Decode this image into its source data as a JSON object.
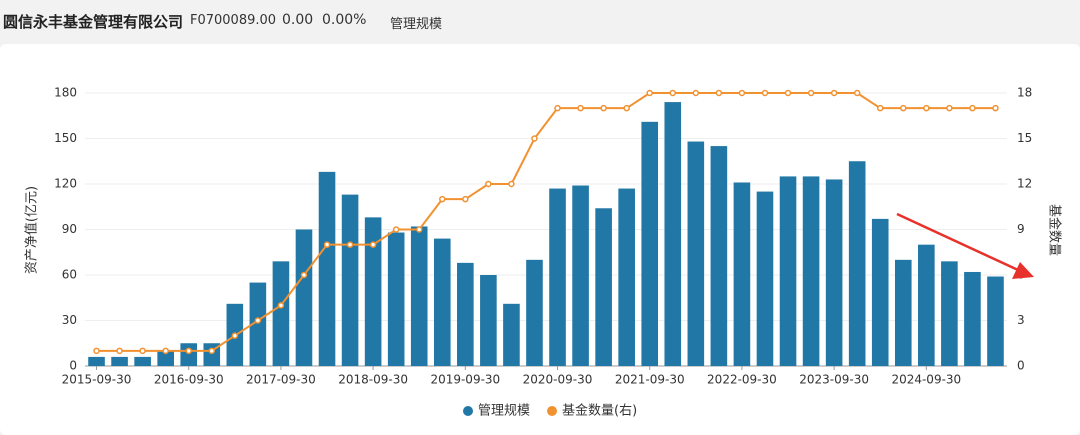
{
  "header": {
    "title": "圆信永丰基金管理有限公司",
    "code": "F0700089.00",
    "price": "0.00",
    "change": "0.00%",
    "tab": "管理规模"
  },
  "chart_data": {
    "type": "bar",
    "y_label": "资产净值(亿元)",
    "y2_label": "基金数量",
    "categories": [
      "2015-09-30",
      null,
      null,
      null,
      "2016-09-30",
      null,
      null,
      null,
      "2017-09-30",
      null,
      null,
      null,
      "2018-09-30",
      null,
      null,
      null,
      "2019-09-30",
      null,
      null,
      null,
      "2020-09-30",
      null,
      null,
      null,
      "2021-09-30",
      null,
      null,
      null,
      "2022-09-30",
      null,
      null,
      null,
      "2023-09-30",
      null,
      null,
      null,
      "2024-09-30",
      null,
      null,
      null
    ],
    "series": [
      {
        "name": "管理规模",
        "type": "bar",
        "color": "#2177a5",
        "values": [
          6,
          6,
          6,
          10,
          15,
          15,
          41,
          55,
          69,
          90,
          128,
          113,
          98,
          88,
          92,
          84,
          68,
          60,
          41,
          70,
          117,
          119,
          104,
          117,
          161,
          174,
          148,
          145,
          121,
          115,
          125,
          125,
          123,
          135,
          97,
          70,
          80,
          69,
          62,
          59
        ]
      },
      {
        "name": "基金数量(右)",
        "type": "line",
        "axis": "y2",
        "color": "#f29130",
        "values": [
          1,
          1,
          1,
          1,
          1,
          1,
          2,
          3,
          4,
          6,
          8,
          8,
          8,
          9,
          9,
          11,
          11,
          12,
          12,
          15,
          17,
          17,
          17,
          17,
          18,
          18,
          18,
          18,
          18,
          18,
          18,
          18,
          18,
          18,
          17,
          17,
          17,
          17,
          17,
          17
        ]
      }
    ],
    "ylim": [
      0,
      180
    ],
    "yticks": [
      0,
      30,
      60,
      90,
      120,
      150,
      180
    ],
    "y2lim": [
      0,
      18
    ],
    "y2ticks": [
      0,
      3,
      6,
      9,
      12,
      15,
      18
    ],
    "grid": true,
    "legend": "bottom"
  }
}
